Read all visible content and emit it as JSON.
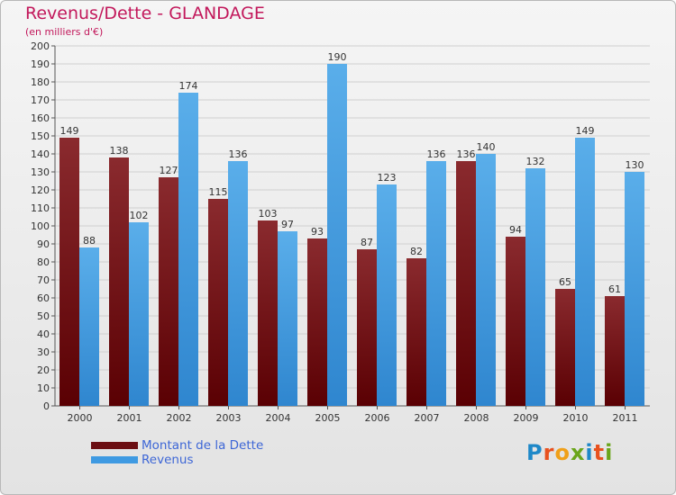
{
  "title": "Revenus/Dette - GLANDAGE",
  "subtitle": "(en milliers d'€)",
  "legend": {
    "dette": "Montant de la Dette",
    "revenus": "Revenus"
  },
  "logo": "Proxiti",
  "colors": {
    "dette": "#6b0e12",
    "revenus": "#3f9ae2",
    "title": "#c2185b",
    "legend_text": "#3d66d6"
  },
  "chart_data": {
    "type": "bar",
    "categories": [
      "2000",
      "2001",
      "2002",
      "2003",
      "2004",
      "2005",
      "2006",
      "2007",
      "2008",
      "2009",
      "2010",
      "2011"
    ],
    "series": [
      {
        "name": "Montant de la Dette",
        "values": [
          149,
          138,
          127,
          115,
          103,
          93,
          87,
          82,
          136,
          94,
          65,
          61
        ]
      },
      {
        "name": "Revenus",
        "values": [
          88,
          102,
          174,
          136,
          97,
          190,
          123,
          136,
          140,
          132,
          149,
          130
        ]
      }
    ],
    "title": "Revenus/Dette - GLANDAGE",
    "ylabel": "(en milliers d'€)",
    "ylim": [
      0,
      200
    ],
    "yticks": [
      0,
      10,
      20,
      30,
      40,
      50,
      60,
      70,
      80,
      90,
      100,
      110,
      120,
      130,
      140,
      150,
      160,
      170,
      180,
      190,
      200
    ],
    "grid": true
  }
}
